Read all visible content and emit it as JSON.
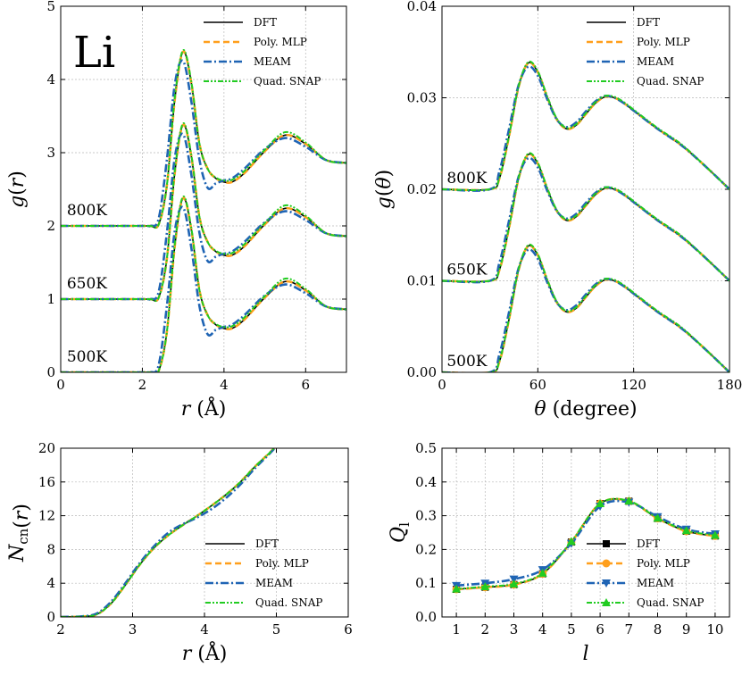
{
  "styles": {
    "DFT": {
      "color": "#000000",
      "dash": "",
      "width": 1.6,
      "marker": "square"
    },
    "Poly. MLP": {
      "color": "#ff9f1c",
      "dash": "7 4",
      "width": 2.6,
      "marker": "circle"
    },
    "MEAM": {
      "color": "#1f64b4",
      "dash": "9 3 2 3",
      "width": 2.6,
      "marker": "tri-down"
    },
    "Quad. SNAP": {
      "color": "#22cc22",
      "dash": "6 2 2 2 2 2",
      "width": 2.0,
      "marker": "tri-up"
    }
  },
  "chart_data": [
    {
      "id": "rdf",
      "type": "line",
      "xlabel_main": "r",
      "xlabel_unit": "(Å)",
      "ylabel_main": "g",
      "ylabel_arg": "r",
      "xlim": [
        0,
        7
      ],
      "ylim": [
        0,
        5
      ],
      "xticks": [
        0,
        2,
        4,
        6
      ],
      "yticks": [
        0,
        1,
        2,
        3,
        4,
        5
      ],
      "grid": true,
      "legend": {
        "position": "top-right",
        "entries": [
          "DFT",
          "Poly. MLP",
          "MEAM",
          "Quad. SNAP"
        ],
        "markers": false
      },
      "big_label": "Li",
      "annotations": [
        {
          "text": "800K",
          "x": 0.15,
          "y": 2.12
        },
        {
          "text": "650K",
          "x": 0.15,
          "y": 1.12
        },
        {
          "text": "500K",
          "x": 0.15,
          "y": 0.12
        }
      ],
      "offsets": [
        2,
        1,
        0
      ],
      "x": [
        0,
        2.0,
        2.2,
        2.4,
        2.6,
        2.8,
        3.0,
        3.2,
        3.4,
        3.6,
        3.8,
        4.0,
        4.2,
        4.5,
        5.0,
        5.5,
        6.0,
        6.5,
        7.0
      ],
      "series": [
        {
          "name": "DFT",
          "values": [
            0,
            0,
            0,
            0.02,
            0.55,
            1.75,
            2.38,
            1.95,
            1.12,
            0.78,
            0.65,
            0.6,
            0.6,
            0.72,
            1.02,
            1.24,
            1.12,
            0.9,
            0.86
          ]
        },
        {
          "name": "Poly. MLP",
          "values": [
            0,
            0,
            0,
            0.02,
            0.55,
            1.75,
            2.38,
            1.95,
            1.12,
            0.78,
            0.65,
            0.6,
            0.6,
            0.72,
            1.02,
            1.24,
            1.12,
            0.9,
            0.86
          ]
        },
        {
          "name": "MEAM",
          "values": [
            0,
            0,
            0,
            0.1,
            0.9,
            1.95,
            2.25,
            1.7,
            0.9,
            0.52,
            0.58,
            0.62,
            0.65,
            0.78,
            1.05,
            1.2,
            1.08,
            0.9,
            0.86
          ]
        },
        {
          "name": "Quad. SNAP",
          "values": [
            0,
            0,
            0,
            0.02,
            0.55,
            1.78,
            2.4,
            1.97,
            1.12,
            0.78,
            0.66,
            0.62,
            0.63,
            0.75,
            1.04,
            1.28,
            1.14,
            0.9,
            0.86
          ]
        }
      ]
    },
    {
      "id": "adf",
      "type": "line",
      "xlabel_main": "θ",
      "xlabel_unit": "(degree)",
      "ylabel_main": "g",
      "ylabel_arg": "θ",
      "xlim": [
        0,
        180
      ],
      "ylim": [
        0,
        0.04
      ],
      "xticks": [
        0,
        60,
        120,
        180
      ],
      "yticks": [
        0.0,
        0.01,
        0.02,
        0.03,
        0.04
      ],
      "ytick_labels": [
        "0.00",
        "0.01",
        "0.02",
        "0.03",
        "0.04"
      ],
      "grid": true,
      "legend": {
        "position": "top-right",
        "entries": [
          "DFT",
          "Poly. MLP",
          "MEAM",
          "Quad. SNAP"
        ],
        "markers": false
      },
      "annotations": [
        {
          "text": "800K",
          "x": 3,
          "y": 0.0205
        },
        {
          "text": "650K",
          "x": 3,
          "y": 0.0105
        },
        {
          "text": "500K",
          "x": 3,
          "y": 0.0005
        }
      ],
      "offsets": [
        0.02,
        0.01,
        0
      ],
      "x": [
        0,
        30,
        36,
        42,
        48,
        54,
        60,
        66,
        72,
        78,
        84,
        90,
        96,
        102,
        108,
        114,
        120,
        135,
        150,
        165,
        180
      ],
      "series": [
        {
          "name": "DFT",
          "values": [
            0,
            0,
            0.0012,
            0.0058,
            0.0112,
            0.0138,
            0.0128,
            0.01,
            0.0076,
            0.0066,
            0.007,
            0.0082,
            0.0094,
            0.0101,
            0.01,
            0.0094,
            0.0086,
            0.0066,
            0.0048,
            0.0025,
            0
          ]
        },
        {
          "name": "Poly. MLP",
          "values": [
            0,
            0,
            0.0012,
            0.0058,
            0.0112,
            0.0138,
            0.0128,
            0.01,
            0.0076,
            0.0066,
            0.007,
            0.0082,
            0.0094,
            0.0101,
            0.01,
            0.0094,
            0.0086,
            0.0066,
            0.0048,
            0.0025,
            0
          ]
        },
        {
          "name": "MEAM",
          "values": [
            0,
            0,
            0.002,
            0.0066,
            0.0114,
            0.0134,
            0.0124,
            0.0098,
            0.0076,
            0.0068,
            0.0073,
            0.0085,
            0.0096,
            0.0102,
            0.01,
            0.0094,
            0.0086,
            0.0066,
            0.0048,
            0.0025,
            0
          ]
        },
        {
          "name": "Quad. SNAP",
          "values": [
            0,
            0,
            0.0013,
            0.0059,
            0.0113,
            0.0139,
            0.0129,
            0.0101,
            0.0077,
            0.0067,
            0.0071,
            0.0083,
            0.0095,
            0.0102,
            0.0101,
            0.0095,
            0.0087,
            0.0067,
            0.0049,
            0.0025,
            0
          ]
        }
      ]
    },
    {
      "id": "ncn",
      "type": "line",
      "xlabel_main": "r",
      "xlabel_unit": "(Å)",
      "ylabel_main": "N",
      "ylabel_sub": "cn",
      "ylabel_arg": "r",
      "xlim": [
        2,
        6
      ],
      "ylim": [
        0,
        20
      ],
      "xticks": [
        2,
        3,
        4,
        5,
        6
      ],
      "yticks": [
        0,
        4,
        8,
        12,
        16,
        20
      ],
      "grid": true,
      "legend": {
        "position": "bottom-right",
        "entries": [
          "DFT",
          "Poly. MLP",
          "MEAM",
          "Quad. SNAP"
        ],
        "markers": false
      },
      "x": [
        2.0,
        2.3,
        2.5,
        2.7,
        2.9,
        3.1,
        3.3,
        3.5,
        3.7,
        3.9,
        4.1,
        4.3,
        4.5,
        4.7,
        4.9,
        5.0
      ],
      "series": [
        {
          "name": "DFT",
          "values": [
            0,
            0.05,
            0.3,
            1.6,
            3.8,
            6.2,
            8.2,
            9.7,
            10.9,
            12.0,
            13.2,
            14.5,
            16.0,
            17.8,
            19.4,
            20.3
          ]
        },
        {
          "name": "Poly. MLP",
          "values": [
            0,
            0.05,
            0.3,
            1.6,
            3.8,
            6.2,
            8.2,
            9.7,
            10.9,
            12.0,
            13.2,
            14.5,
            16.0,
            17.8,
            19.4,
            20.3
          ]
        },
        {
          "name": "MEAM",
          "values": [
            0,
            0.08,
            0.4,
            1.8,
            4.0,
            6.4,
            8.4,
            10.0,
            11.0,
            11.8,
            12.8,
            14.1,
            15.7,
            17.6,
            19.3,
            20.2
          ]
        },
        {
          "name": "Quad. SNAP",
          "values": [
            0,
            0.05,
            0.3,
            1.6,
            3.8,
            6.2,
            8.2,
            9.7,
            10.9,
            12.0,
            13.2,
            14.5,
            16.0,
            17.8,
            19.4,
            20.3
          ]
        }
      ]
    },
    {
      "id": "ql",
      "type": "line",
      "xlabel_main": "l",
      "ylabel_main": "Q",
      "ylabel_sub": "l",
      "xlim": [
        0.5,
        10.5
      ],
      "ylim": [
        0,
        0.5
      ],
      "xticks": [
        1,
        2,
        3,
        4,
        5,
        6,
        7,
        8,
        9,
        10
      ],
      "yticks": [
        0.0,
        0.1,
        0.2,
        0.3,
        0.4,
        0.5
      ],
      "ytick_labels": [
        "0.0",
        "0.1",
        "0.2",
        "0.3",
        "0.4",
        "0.5"
      ],
      "grid": true,
      "legend": {
        "position": "bottom-right",
        "entries": [
          "DFT",
          "Poly. MLP",
          "MEAM",
          "Quad. SNAP"
        ],
        "markers": true
      },
      "x": [
        1,
        2,
        3,
        4,
        5,
        6,
        7,
        8,
        9,
        10
      ],
      "series": [
        {
          "name": "DFT",
          "values": [
            0.082,
            0.088,
            0.096,
            0.128,
            0.222,
            0.336,
            0.343,
            0.292,
            0.254,
            0.24
          ]
        },
        {
          "name": "Poly. MLP",
          "values": [
            0.082,
            0.088,
            0.096,
            0.128,
            0.222,
            0.336,
            0.343,
            0.292,
            0.254,
            0.24
          ]
        },
        {
          "name": "MEAM",
          "values": [
            0.093,
            0.1,
            0.112,
            0.14,
            0.218,
            0.328,
            0.34,
            0.297,
            0.26,
            0.246
          ]
        },
        {
          "name": "Quad. SNAP",
          "values": [
            0.083,
            0.09,
            0.098,
            0.13,
            0.224,
            0.336,
            0.344,
            0.293,
            0.256,
            0.242
          ]
        }
      ]
    }
  ]
}
